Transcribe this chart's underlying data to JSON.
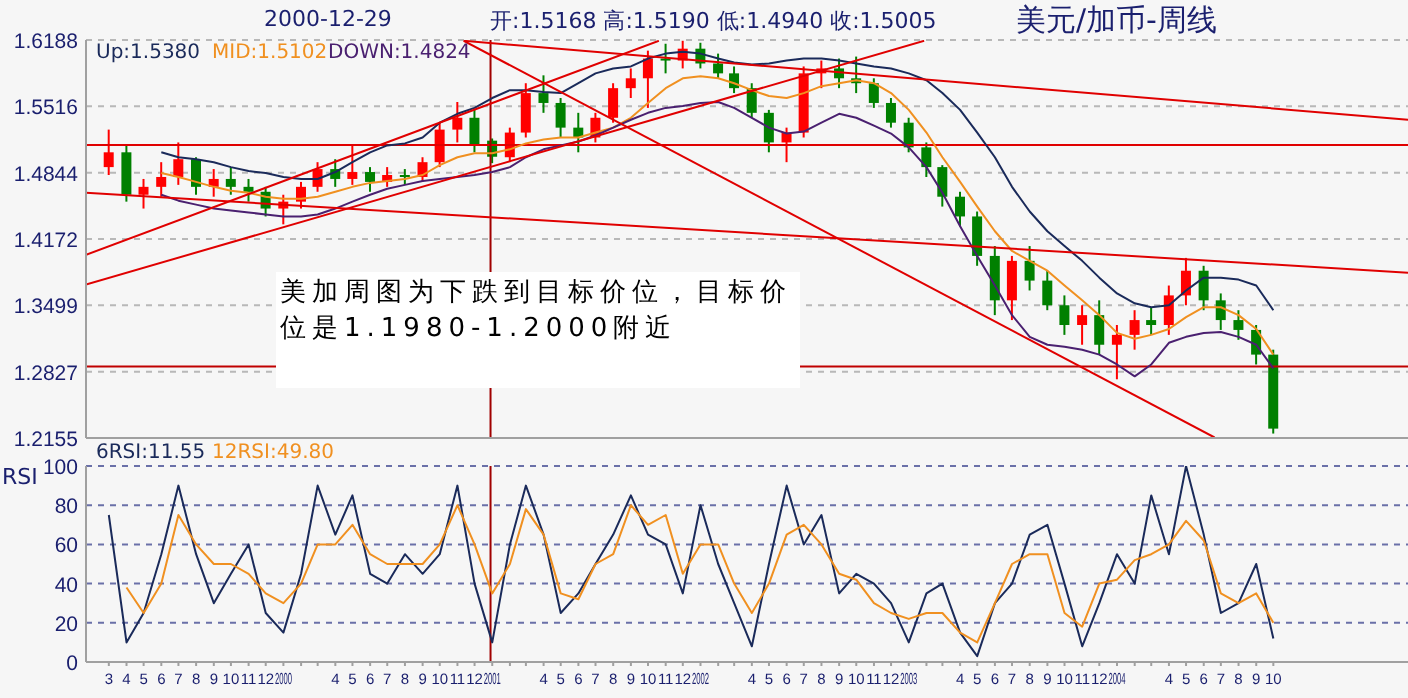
{
  "chart_data": [
    {
      "type": "candlestick",
      "title": "美元/加币-周线",
      "annotations": [
        "2000-12-29",
        "开:1.5168 高:1.5190 低:1.4940 收:1.5005",
        "美加周图为下跌到目标价位，目标价位是1.1980-1.2000附近"
      ],
      "x": [
        "1999-03",
        "1999-04",
        "1999-05",
        "1999-06",
        "1999-07",
        "1999-08",
        "1999-09",
        "1999-10",
        "1999-11",
        "1999-12",
        "2000-01",
        "2000-02",
        "2000-03",
        "2000-04",
        "2000-05",
        "2000-06",
        "2000-07",
        "2000-08",
        "2000-09",
        "2000-10",
        "2000-11",
        "2000-12",
        "2001-01",
        "2001-02",
        "2001-03",
        "2001-04",
        "2001-05",
        "2001-06",
        "2001-07",
        "2001-08",
        "2001-09",
        "2001-10",
        "2001-11",
        "2001-12",
        "2002-01",
        "2002-02",
        "2002-03",
        "2002-04",
        "2002-05",
        "2002-06",
        "2002-07",
        "2002-08",
        "2002-09",
        "2002-10",
        "2002-11",
        "2002-12",
        "2003-01",
        "2003-02",
        "2003-03",
        "2003-04",
        "2003-05",
        "2003-06",
        "2003-07",
        "2003-08",
        "2003-09",
        "2003-10",
        "2003-11",
        "2003-12",
        "2004-01",
        "2004-02",
        "2004-03",
        "2004-04",
        "2004-05",
        "2004-06",
        "2004-07",
        "2004-08",
        "2004-09",
        "2004-10"
      ],
      "ohlc": [
        [
          1.49,
          1.528,
          1.482,
          1.505
        ],
        [
          1.505,
          1.512,
          1.455,
          1.462
        ],
        [
          1.462,
          1.478,
          1.448,
          1.47
        ],
        [
          1.47,
          1.495,
          1.46,
          1.48
        ],
        [
          1.48,
          1.515,
          1.472,
          1.498
        ],
        [
          1.498,
          1.5,
          1.462,
          1.47
        ],
        [
          1.47,
          1.488,
          1.46,
          1.478
        ],
        [
          1.478,
          1.49,
          1.462,
          1.47
        ],
        [
          1.47,
          1.478,
          1.455,
          1.465
        ],
        [
          1.465,
          1.47,
          1.44,
          1.448
        ],
        [
          1.448,
          1.462,
          1.432,
          1.455
        ],
        [
          1.455,
          1.475,
          1.448,
          1.47
        ],
        [
          1.47,
          1.495,
          1.465,
          1.488
        ],
        [
          1.488,
          1.498,
          1.47,
          1.478
        ],
        [
          1.478,
          1.512,
          1.472,
          1.485
        ],
        [
          1.485,
          1.49,
          1.465,
          1.475
        ],
        [
          1.475,
          1.49,
          1.47,
          1.482
        ],
        [
          1.482,
          1.488,
          1.472,
          1.48
        ],
        [
          1.48,
          1.5,
          1.475,
          1.495
        ],
        [
          1.495,
          1.535,
          1.49,
          1.528
        ],
        [
          1.528,
          1.556,
          1.515,
          1.54
        ],
        [
          1.54,
          1.548,
          1.505,
          1.512
        ],
        [
          1.5168,
          1.519,
          1.494,
          1.5005
        ],
        [
          1.5,
          1.53,
          1.495,
          1.525
        ],
        [
          1.525,
          1.575,
          1.52,
          1.565
        ],
        [
          1.565,
          1.583,
          1.545,
          1.555
        ],
        [
          1.555,
          1.56,
          1.52,
          1.53
        ],
        [
          1.53,
          1.545,
          1.505,
          1.52
        ],
        [
          1.52,
          1.545,
          1.515,
          1.54
        ],
        [
          1.54,
          1.575,
          1.535,
          1.57
        ],
        [
          1.57,
          1.59,
          1.56,
          1.58
        ],
        [
          1.58,
          1.608,
          1.55,
          1.6
        ],
        [
          1.6,
          1.615,
          1.585,
          1.598
        ],
        [
          1.598,
          1.618,
          1.59,
          1.61
        ],
        [
          1.61,
          1.616,
          1.59,
          1.595
        ],
        [
          1.595,
          1.605,
          1.58,
          1.585
        ],
        [
          1.585,
          1.592,
          1.565,
          1.57
        ],
        [
          1.57,
          1.575,
          1.54,
          1.545
        ],
        [
          1.545,
          1.548,
          1.505,
          1.515
        ],
        [
          1.515,
          1.53,
          1.495,
          1.525
        ],
        [
          1.525,
          1.592,
          1.52,
          1.585
        ],
        [
          1.585,
          1.598,
          1.57,
          1.59
        ],
        [
          1.59,
          1.6,
          1.57,
          1.58
        ],
        [
          1.58,
          1.602,
          1.565,
          1.575
        ],
        [
          1.575,
          1.58,
          1.55,
          1.555
        ],
        [
          1.555,
          1.56,
          1.53,
          1.535
        ],
        [
          1.535,
          1.54,
          1.505,
          1.51
        ],
        [
          1.51,
          1.515,
          1.48,
          1.49
        ],
        [
          1.49,
          1.492,
          1.45,
          1.46
        ],
        [
          1.46,
          1.465,
          1.43,
          1.44
        ],
        [
          1.44,
          1.445,
          1.39,
          1.4
        ],
        [
          1.4,
          1.41,
          1.34,
          1.355
        ],
        [
          1.355,
          1.4,
          1.335,
          1.395
        ],
        [
          1.395,
          1.41,
          1.365,
          1.375
        ],
        [
          1.375,
          1.385,
          1.345,
          1.35
        ],
        [
          1.35,
          1.36,
          1.32,
          1.33
        ],
        [
          1.33,
          1.35,
          1.31,
          1.34
        ],
        [
          1.34,
          1.355,
          1.3,
          1.31
        ],
        [
          1.31,
          1.33,
          1.275,
          1.32
        ],
        [
          1.32,
          1.345,
          1.305,
          1.335
        ],
        [
          1.335,
          1.348,
          1.32,
          1.33
        ],
        [
          1.33,
          1.37,
          1.32,
          1.36
        ],
        [
          1.36,
          1.398,
          1.35,
          1.385
        ],
        [
          1.385,
          1.39,
          1.345,
          1.355
        ],
        [
          1.355,
          1.362,
          1.325,
          1.335
        ],
        [
          1.335,
          1.345,
          1.315,
          1.325
        ],
        [
          1.325,
          1.33,
          1.29,
          1.3
        ],
        [
          1.3,
          1.305,
          1.22,
          1.225
        ]
      ],
      "colors": [
        "#ff0000",
        "#008000",
        "#ff0000",
        "#ff0000",
        "#ff0000",
        "#008000",
        "#ff0000",
        "#008000",
        "#008000",
        "#008000",
        "#ff0000",
        "#ff0000",
        "#ff0000",
        "#008000",
        "#ff0000",
        "#008000",
        "#ff0000",
        "#008000",
        "#ff0000",
        "#ff0000",
        "#ff0000",
        "#008000",
        "#008000",
        "#ff0000",
        "#ff0000",
        "#008000",
        "#008000",
        "#008000",
        "#ff0000",
        "#ff0000",
        "#ff0000",
        "#ff0000",
        "#008000",
        "#ff0000",
        "#008000",
        "#008000",
        "#008000",
        "#008000",
        "#008000",
        "#ff0000",
        "#ff0000",
        "#ff0000",
        "#008000",
        "#008000",
        "#008000",
        "#008000",
        "#008000",
        "#008000",
        "#008000",
        "#008000",
        "#008000",
        "#008000",
        "#ff0000",
        "#008000",
        "#008000",
        "#008000",
        "#ff0000",
        "#008000",
        "#ff0000",
        "#ff0000",
        "#008000",
        "#ff0000",
        "#ff0000",
        "#008000",
        "#008000",
        "#008000",
        "#008000",
        "#008000"
      ],
      "series": [
        {
          "type": "line",
          "name": "Up:1.5380",
          "color": "#1a2a5a",
          "values": [
            null,
            null,
            null,
            1.505,
            1.5,
            1.498,
            1.495,
            1.49,
            1.486,
            1.484,
            1.48,
            1.478,
            1.478,
            1.485,
            1.495,
            1.505,
            1.512,
            1.514,
            1.52,
            1.535,
            1.544,
            1.55,
            1.56,
            1.568,
            1.568,
            1.566,
            1.565,
            1.575,
            1.585,
            1.59,
            1.592,
            1.6,
            1.605,
            1.607,
            1.605,
            1.6,
            1.596,
            1.594,
            1.595,
            1.598,
            1.6,
            1.6,
            1.598,
            1.595,
            1.592,
            1.59,
            1.585,
            1.578,
            1.565,
            1.548,
            1.525,
            1.5,
            1.47,
            1.445,
            1.425,
            1.41,
            1.395,
            1.378,
            1.362,
            1.352,
            1.348,
            1.35,
            1.365,
            1.378,
            1.378,
            1.376,
            1.37,
            1.345
          ]
        },
        {
          "type": "line",
          "name": "MID:1.5102",
          "color": "#f09020",
          "values": [
            null,
            null,
            null,
            1.484,
            1.48,
            1.475,
            1.47,
            1.466,
            1.464,
            1.46,
            1.458,
            1.458,
            1.46,
            1.465,
            1.47,
            1.474,
            1.476,
            1.478,
            1.482,
            1.492,
            1.5,
            1.504,
            1.504,
            1.508,
            1.514,
            1.518,
            1.52,
            1.52,
            1.525,
            1.53,
            1.54,
            1.555,
            1.57,
            1.58,
            1.582,
            1.58,
            1.575,
            1.568,
            1.562,
            1.56,
            1.565,
            1.572,
            1.575,
            1.578,
            1.575,
            1.565,
            1.548,
            1.525,
            1.5,
            1.475,
            1.45,
            1.425,
            1.405,
            1.395,
            1.385,
            1.37,
            1.355,
            1.34,
            1.322,
            1.316,
            1.32,
            1.326,
            1.338,
            1.348,
            1.348,
            1.34,
            1.326,
            1.3
          ]
        },
        {
          "type": "line",
          "name": "DOWN:1.4824",
          "color": "#4a2070",
          "values": [
            null,
            null,
            null,
            1.462,
            1.456,
            1.452,
            1.448,
            1.446,
            1.444,
            1.442,
            1.44,
            1.44,
            1.442,
            1.448,
            1.455,
            1.462,
            1.468,
            1.472,
            1.476,
            1.478,
            1.48,
            1.482,
            1.485,
            1.49,
            1.5,
            1.508,
            1.512,
            1.516,
            1.522,
            1.53,
            1.538,
            1.545,
            1.55,
            1.552,
            1.555,
            1.556,
            1.55,
            1.54,
            1.53,
            1.524,
            1.526,
            1.535,
            1.544,
            1.54,
            1.532,
            1.524,
            1.51,
            1.49,
            1.464,
            1.43,
            1.4,
            1.37,
            1.34,
            1.318,
            1.31,
            1.308,
            1.305,
            1.3,
            1.29,
            1.278,
            1.29,
            1.312,
            1.318,
            1.322,
            1.323,
            1.318,
            1.31,
            1.286
          ]
        },
        {
          "type": "line",
          "color": "#e00000",
          "x": [
            "1999-01-20",
            "2005-05-25"
          ],
          "values": [
            1.464,
            1.383
          ]
        },
        {
          "type": "line",
          "color": "#e00000",
          "x": [
            "2000-11-12",
            "2005-05-25"
          ],
          "values": [
            1.618,
            1.538
          ]
        },
        {
          "type": "line",
          "color": "#e00000",
          "x": [
            "2000-11-12",
            "2004-06-20"
          ],
          "values": [
            1.618,
            1.216
          ]
        },
        {
          "type": "line",
          "color": "#e00000",
          "x": [
            "1999-01-20",
            "2003-01-28"
          ],
          "values": [
            1.371,
            1.618
          ]
        },
        {
          "type": "line",
          "color": "#e00000",
          "x": [
            "1999-01-20",
            "2001-10-20"
          ],
          "values": [
            1.401,
            1.618
          ]
        }
      ],
      "ylim": [
        1.2155,
        1.6188
      ],
      "yticks": [
        1.2155,
        1.2827,
        1.3499,
        1.4172,
        1.4844,
        1.5516,
        1.6188
      ],
      "xlim": [
        "1999-01-20",
        "2005-05-25"
      ],
      "tick_labels": "y",
      "grid": "y",
      "legend": "top left",
      "marker": "none",
      "ref_lines": [
        {
          "axis": "y",
          "value": 1.5125,
          "color": "#e00000"
        },
        {
          "axis": "y",
          "value": 1.288,
          "color": "#c00000"
        },
        {
          "axis": "x",
          "value": "2000-12-29",
          "color": "#a00000"
        }
      ]
    },
    {
      "type": "line",
      "ylabel": "RSI",
      "x": [
        "1999-03",
        "1999-04",
        "1999-05",
        "1999-06",
        "1999-07",
        "1999-08",
        "1999-09",
        "1999-10",
        "1999-11",
        "1999-12",
        "2000-01",
        "2000-02",
        "2000-03",
        "2000-04",
        "2000-05",
        "2000-06",
        "2000-07",
        "2000-08",
        "2000-09",
        "2000-10",
        "2000-11",
        "2000-12",
        "2001-01",
        "2001-02",
        "2001-03",
        "2001-04",
        "2001-05",
        "2001-06",
        "2001-07",
        "2001-08",
        "2001-09",
        "2001-10",
        "2001-11",
        "2001-12",
        "2002-01",
        "2002-02",
        "2002-03",
        "2002-04",
        "2002-05",
        "2002-06",
        "2002-07",
        "2002-08",
        "2002-09",
        "2002-10",
        "2002-11",
        "2002-12",
        "2003-01",
        "2003-02",
        "2003-03",
        "2003-04",
        "2003-05",
        "2003-06",
        "2003-07",
        "2003-08",
        "2003-09",
        "2003-10",
        "2003-11",
        "2003-12",
        "2004-01",
        "2004-02",
        "2004-03",
        "2004-04",
        "2004-05",
        "2004-06",
        "2004-07",
        "2004-08",
        "2004-09",
        "2004-10"
      ],
      "series": [
        {
          "name": "6RSI:11.55",
          "color": "#1a2a5a",
          "values": [
            75,
            10,
            25,
            55,
            90,
            55,
            30,
            45,
            60,
            25,
            15,
            45,
            90,
            65,
            85,
            45,
            40,
            55,
            45,
            55,
            90,
            40,
            10,
            60,
            90,
            65,
            25,
            35,
            50,
            65,
            85,
            65,
            60,
            35,
            80,
            50,
            30,
            8,
            50,
            90,
            60,
            75,
            35,
            45,
            40,
            30,
            10,
            35,
            40,
            15,
            3,
            30,
            40,
            65,
            70,
            40,
            8,
            30,
            55,
            40,
            85,
            55,
            100,
            65,
            25,
            30,
            50,
            12
          ]
        },
        {
          "name": "12RSI:49.80",
          "color": "#f09020",
          "values": [
            null,
            38,
            25,
            40,
            75,
            60,
            50,
            50,
            45,
            35,
            30,
            40,
            60,
            60,
            70,
            55,
            50,
            50,
            50,
            60,
            80,
            60,
            35,
            50,
            78,
            65,
            35,
            32,
            50,
            55,
            80,
            70,
            75,
            45,
            60,
            60,
            40,
            25,
            40,
            65,
            70,
            60,
            45,
            42,
            30,
            25,
            22,
            25,
            25,
            15,
            10,
            30,
            50,
            55,
            55,
            25,
            18,
            40,
            42,
            52,
            55,
            60,
            72,
            62,
            35,
            30,
            35,
            20
          ]
        }
      ],
      "ylim": [
        0,
        100
      ],
      "yticks": [
        0,
        20,
        40,
        60,
        80,
        100
      ],
      "xlim": [
        "1999-01-20",
        "2005-05-25"
      ],
      "xticks": [
        {
          "value": "1999-03",
          "label": "3"
        },
        {
          "value": "1999-04",
          "label": "4"
        },
        {
          "value": "1999-05",
          "label": "5"
        },
        {
          "value": "1999-06",
          "label": "6"
        },
        {
          "value": "1999-07",
          "label": "7"
        },
        {
          "value": "1999-08",
          "label": "8"
        },
        {
          "value": "1999-09",
          "label": "9"
        },
        {
          "value": "1999-10",
          "label": "10"
        },
        {
          "value": "1999-11",
          "label": "11"
        },
        {
          "value": "1999-12",
          "label": "12"
        },
        {
          "value": "2000-01",
          "label": "2000"
        },
        {
          "value": "2000-02",
          "label": null
        },
        {
          "value": "2000-03",
          "label": null
        },
        {
          "value": "2000-04",
          "label": "4"
        },
        {
          "value": "2000-05",
          "label": "5"
        },
        {
          "value": "2000-06",
          "label": "6"
        },
        {
          "value": "2000-07",
          "label": "7"
        },
        {
          "value": "2000-08",
          "label": "8"
        },
        {
          "value": "2000-09",
          "label": "9"
        },
        {
          "value": "2000-10",
          "label": "10"
        },
        {
          "value": "2000-11",
          "label": "11"
        },
        {
          "value": "2000-12",
          "label": "12"
        },
        {
          "value": "2001-01",
          "label": "2001"
        },
        {
          "value": "2001-02",
          "label": null
        },
        {
          "value": "2001-03",
          "label": null
        },
        {
          "value": "2001-04",
          "label": "4"
        },
        {
          "value": "2001-05",
          "label": "5"
        },
        {
          "value": "2001-06",
          "label": "6"
        },
        {
          "value": "2001-07",
          "label": "7"
        },
        {
          "value": "2001-08",
          "label": "8"
        },
        {
          "value": "2001-09",
          "label": "9"
        },
        {
          "value": "2001-10",
          "label": "10"
        },
        {
          "value": "2001-11",
          "label": "11"
        },
        {
          "value": "2001-12",
          "label": "12"
        },
        {
          "value": "2002-01",
          "label": "2002"
        },
        {
          "value": "2002-02",
          "label": null
        },
        {
          "value": "2002-03",
          "label": null
        },
        {
          "value": "2002-04",
          "label": "4"
        },
        {
          "value": "2002-05",
          "label": "5"
        },
        {
          "value": "2002-06",
          "label": "6"
        },
        {
          "value": "2002-07",
          "label": "7"
        },
        {
          "value": "2002-08",
          "label": "8"
        },
        {
          "value": "2002-09",
          "label": "9"
        },
        {
          "value": "2002-10",
          "label": "10"
        },
        {
          "value": "2002-11",
          "label": "11"
        },
        {
          "value": "2002-12",
          "label": "12"
        },
        {
          "value": "2003-01",
          "label": "2003"
        },
        {
          "value": "2003-02",
          "label": null
        },
        {
          "value": "2003-03",
          "label": null
        },
        {
          "value": "2003-04",
          "label": "4"
        },
        {
          "value": "2003-05",
          "label": "5"
        },
        {
          "value": "2003-06",
          "label": "6"
        },
        {
          "value": "2003-07",
          "label": "7"
        },
        {
          "value": "2003-08",
          "label": "8"
        },
        {
          "value": "2003-09",
          "label": "9"
        },
        {
          "value": "2003-10",
          "label": "10"
        },
        {
          "value": "2003-11",
          "label": "11"
        },
        {
          "value": "2003-12",
          "label": "12"
        },
        {
          "value": "2004-01",
          "label": "2004"
        },
        {
          "value": "2004-02",
          "label": null
        },
        {
          "value": "2004-03",
          "label": null
        },
        {
          "value": "2004-04",
          "label": "4"
        },
        {
          "value": "2004-05",
          "label": "5"
        },
        {
          "value": "2004-06",
          "label": "6"
        },
        {
          "value": "2004-07",
          "label": "7"
        },
        {
          "value": "2004-08",
          "label": "8"
        },
        {
          "value": "2004-09",
          "label": "9"
        },
        {
          "value": "2004-10",
          "label": "10"
        }
      ],
      "grid": "y",
      "legend": "top left",
      "marker": "none",
      "ref_lines": [
        {
          "axis": "x",
          "value": "2000-12-29",
          "color": "#a00000"
        }
      ]
    }
  ]
}
